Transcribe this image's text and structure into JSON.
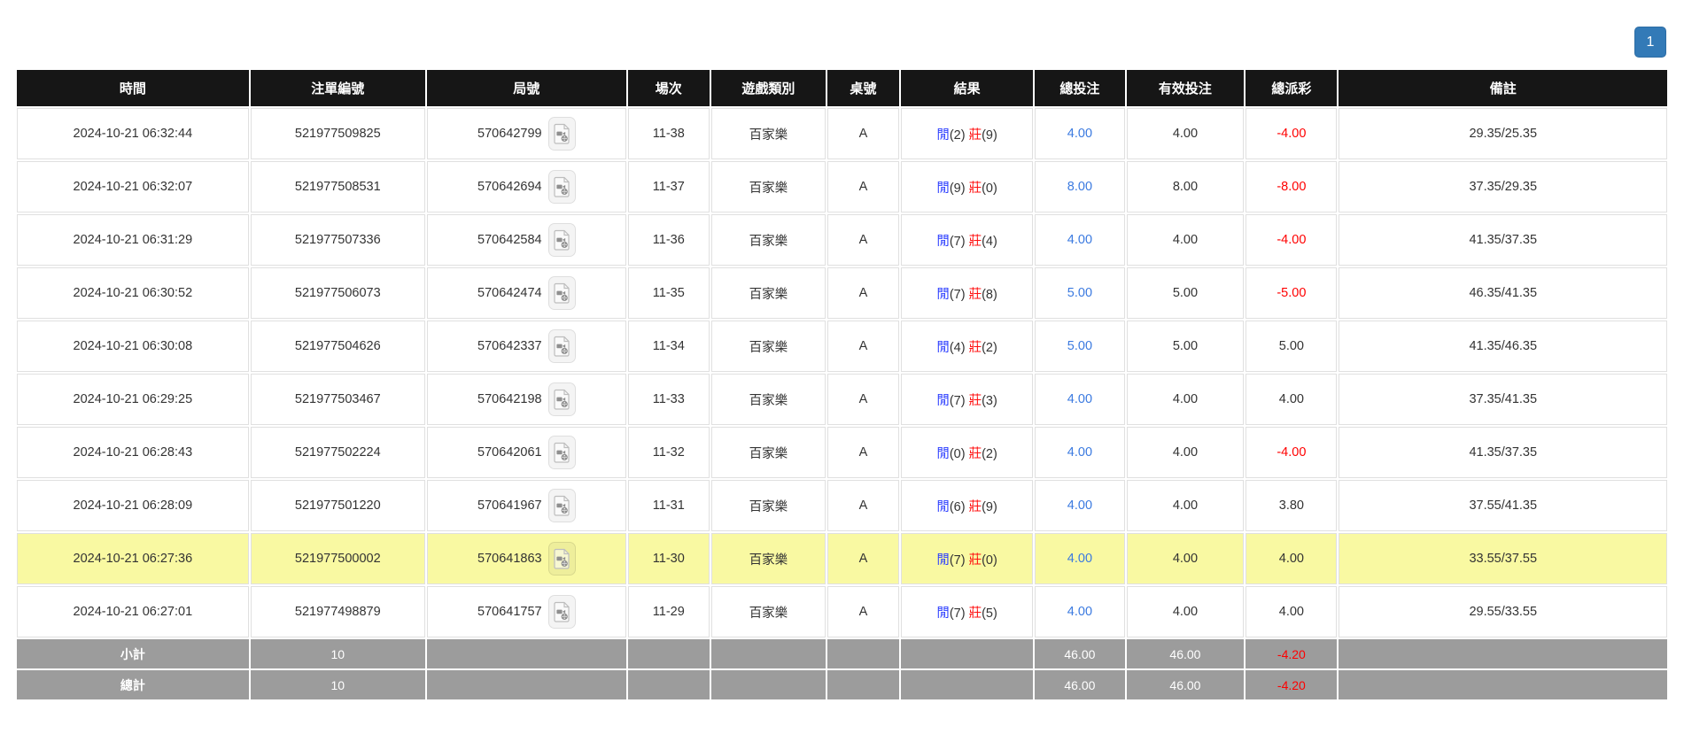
{
  "pagination": {
    "current_page": "1"
  },
  "table": {
    "headers": [
      "時間",
      "注單編號",
      "局號",
      "場次",
      "遊戲類別",
      "桌號",
      "結果",
      "總投注",
      "有效投注",
      "總派彩",
      "備註"
    ],
    "rows": [
      {
        "time": "2024-10-21 06:32:44",
        "bet_id": "521977509825",
        "round_id": "570642799",
        "session": "11-38",
        "game_type": "百家樂",
        "table_no": "A",
        "result": {
          "player": "閒",
          "player_score": "(2)",
          "banker": "莊",
          "banker_score": "(9)"
        },
        "total_bet": "4.00",
        "valid_bet": "4.00",
        "payout": "-4.00",
        "remark": "29.35/25.35",
        "highlight": false
      },
      {
        "time": "2024-10-21 06:32:07",
        "bet_id": "521977508531",
        "round_id": "570642694",
        "session": "11-37",
        "game_type": "百家樂",
        "table_no": "A",
        "result": {
          "player": "閒",
          "player_score": "(9)",
          "banker": "莊",
          "banker_score": "(0)"
        },
        "total_bet": "8.00",
        "valid_bet": "8.00",
        "payout": "-8.00",
        "remark": "37.35/29.35",
        "highlight": false
      },
      {
        "time": "2024-10-21 06:31:29",
        "bet_id": "521977507336",
        "round_id": "570642584",
        "session": "11-36",
        "game_type": "百家樂",
        "table_no": "A",
        "result": {
          "player": "閒",
          "player_score": "(7)",
          "banker": "莊",
          "banker_score": "(4)"
        },
        "total_bet": "4.00",
        "valid_bet": "4.00",
        "payout": "-4.00",
        "remark": "41.35/37.35",
        "highlight": false
      },
      {
        "time": "2024-10-21 06:30:52",
        "bet_id": "521977506073",
        "round_id": "570642474",
        "session": "11-35",
        "game_type": "百家樂",
        "table_no": "A",
        "result": {
          "player": "閒",
          "player_score": "(7)",
          "banker": "莊",
          "banker_score": "(8)"
        },
        "total_bet": "5.00",
        "valid_bet": "5.00",
        "payout": "-5.00",
        "remark": "46.35/41.35",
        "highlight": false
      },
      {
        "time": "2024-10-21 06:30:08",
        "bet_id": "521977504626",
        "round_id": "570642337",
        "session": "11-34",
        "game_type": "百家樂",
        "table_no": "A",
        "result": {
          "player": "閒",
          "player_score": "(4)",
          "banker": "莊",
          "banker_score": "(2)"
        },
        "total_bet": "5.00",
        "valid_bet": "5.00",
        "payout": "5.00",
        "remark": "41.35/46.35",
        "highlight": false
      },
      {
        "time": "2024-10-21 06:29:25",
        "bet_id": "521977503467",
        "round_id": "570642198",
        "session": "11-33",
        "game_type": "百家樂",
        "table_no": "A",
        "result": {
          "player": "閒",
          "player_score": "(7)",
          "banker": "莊",
          "banker_score": "(3)"
        },
        "total_bet": "4.00",
        "valid_bet": "4.00",
        "payout": "4.00",
        "remark": "37.35/41.35",
        "highlight": false
      },
      {
        "time": "2024-10-21 06:28:43",
        "bet_id": "521977502224",
        "round_id": "570642061",
        "session": "11-32",
        "game_type": "百家樂",
        "table_no": "A",
        "result": {
          "player": "閒",
          "player_score": "(0)",
          "banker": "莊",
          "banker_score": "(2)"
        },
        "total_bet": "4.00",
        "valid_bet": "4.00",
        "payout": "-4.00",
        "remark": "41.35/37.35",
        "highlight": false
      },
      {
        "time": "2024-10-21 06:28:09",
        "bet_id": "521977501220",
        "round_id": "570641967",
        "session": "11-31",
        "game_type": "百家樂",
        "table_no": "A",
        "result": {
          "player": "閒",
          "player_score": "(6)",
          "banker": "莊",
          "banker_score": "(9)"
        },
        "total_bet": "4.00",
        "valid_bet": "4.00",
        "payout": "3.80",
        "remark": "37.55/41.35",
        "highlight": false
      },
      {
        "time": "2024-10-21 06:27:36",
        "bet_id": "521977500002",
        "round_id": "570641863",
        "session": "11-30",
        "game_type": "百家樂",
        "table_no": "A",
        "result": {
          "player": "閒",
          "player_score": "(7)",
          "banker": "莊",
          "banker_score": "(0)"
        },
        "total_bet": "4.00",
        "valid_bet": "4.00",
        "payout": "4.00",
        "remark": "33.55/37.55",
        "highlight": true
      },
      {
        "time": "2024-10-21 06:27:01",
        "bet_id": "521977498879",
        "round_id": "570641757",
        "session": "11-29",
        "game_type": "百家樂",
        "table_no": "A",
        "result": {
          "player": "閒",
          "player_score": "(7)",
          "banker": "莊",
          "banker_score": "(5)"
        },
        "total_bet": "4.00",
        "valid_bet": "4.00",
        "payout": "4.00",
        "remark": "29.55/33.55",
        "highlight": false
      }
    ],
    "subtotal": {
      "label": "小計",
      "count": "10",
      "total_bet": "46.00",
      "valid_bet": "46.00",
      "payout": "-4.20"
    },
    "total": {
      "label": "總計",
      "count": "10",
      "total_bet": "46.00",
      "valid_bet": "46.00",
      "payout": "-4.20"
    }
  },
  "colors": {
    "header_bg": "#161616",
    "footer_bg": "#9c9c9c",
    "highlight_row": "#f9f9a2",
    "player_blue": "#2d3fff",
    "banker_red": "#ff1010",
    "link_blue": "#3b7ae0",
    "negative_red": "#ff0000",
    "pager_blue": "#337ab7"
  }
}
